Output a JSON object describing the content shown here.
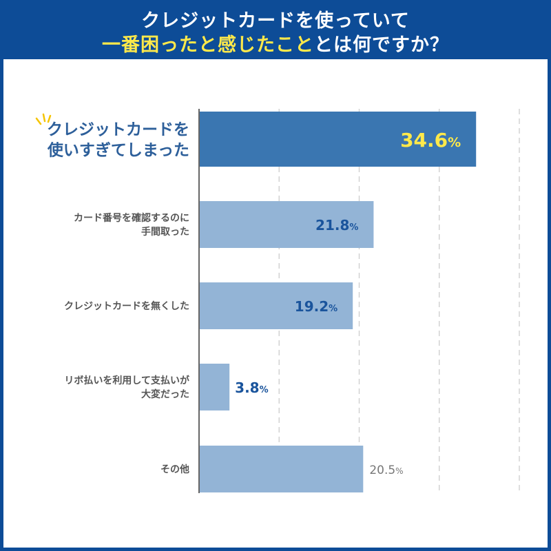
{
  "header": {
    "line1": "クレジットカードを使っていて",
    "line2_highlight": "一番困ったと感じたこと",
    "line2_rest": "とは何ですか？"
  },
  "colors": {
    "header_bg": "#0d4c97",
    "highlight": "#ffe94a",
    "top_bar": "#3a76b1",
    "other_bar": "#93b4d6",
    "top_label": "#2d5f9a",
    "value_blue": "#1a549c",
    "value_gray": "#777777",
    "category_text": "#555555",
    "grid": "#cccccc"
  },
  "chart_data": {
    "type": "bar",
    "orientation": "horizontal",
    "title": "クレジットカードを使っていて一番困ったと感じたことは何ですか？",
    "xlim": [
      0,
      40
    ],
    "grid": true,
    "categories": [
      [
        "クレジットカードを",
        "使いすぎてしまった"
      ],
      [
        "カード番号を確認するのに",
        "手間取った"
      ],
      [
        "クレジットカードを無くした"
      ],
      [
        "リボ払いを利用して支払いが",
        "大変だった"
      ],
      [
        "その他"
      ]
    ],
    "values": [
      34.6,
      21.8,
      19.2,
      3.8,
      20.5
    ],
    "value_labels": [
      "34.6",
      "21.8",
      "19.2",
      "3.8",
      "20.5"
    ],
    "unit": "%"
  }
}
